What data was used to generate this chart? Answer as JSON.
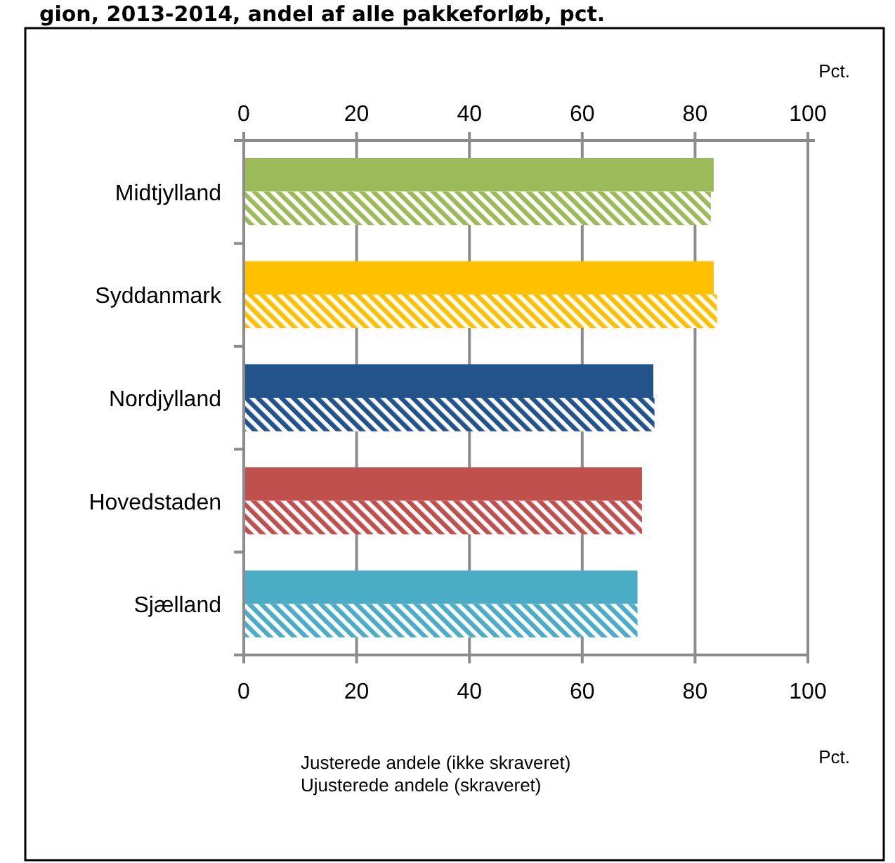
{
  "chart_data": {
    "type": "bar",
    "orientation": "horizontal",
    "title": "gion, 2013-2014, andel af alle pakkeforløb, pct.",
    "categories": [
      "Midtjylland",
      "Syddanmark",
      "Nordjylland",
      "Hovedstaden",
      "Sjælland"
    ],
    "series": [
      {
        "colors": [
          "#9bbb59",
          "#ffc000",
          "#22538a",
          "#c0504d",
          "#4bacc6"
        ],
        "values": [
          83.3,
          83.3,
          72.6,
          70.6,
          69.8
        ]
      },
      {
        "colors": [
          "#9bbb59",
          "#ffc000",
          "#22538a",
          "#c0504d",
          "#4bacc6"
        ],
        "values": [
          82.8,
          83.9,
          72.8,
          70.6,
          69.8
        ]
      }
    ],
    "xlim": [
      0,
      100
    ],
    "xticks": [
      0,
      20,
      40,
      60,
      80,
      100
    ],
    "x2lim": [
      0,
      100
    ],
    "x2ticks": [
      0,
      20,
      40,
      60,
      80,
      100
    ],
    "xlabel": "Pct.",
    "x2label": "Pct.",
    "grid": "x",
    "annotations": [
      "Justerede andele (ikke skraveret)",
      "Ujusterede andele (skraveret)"
    ]
  }
}
